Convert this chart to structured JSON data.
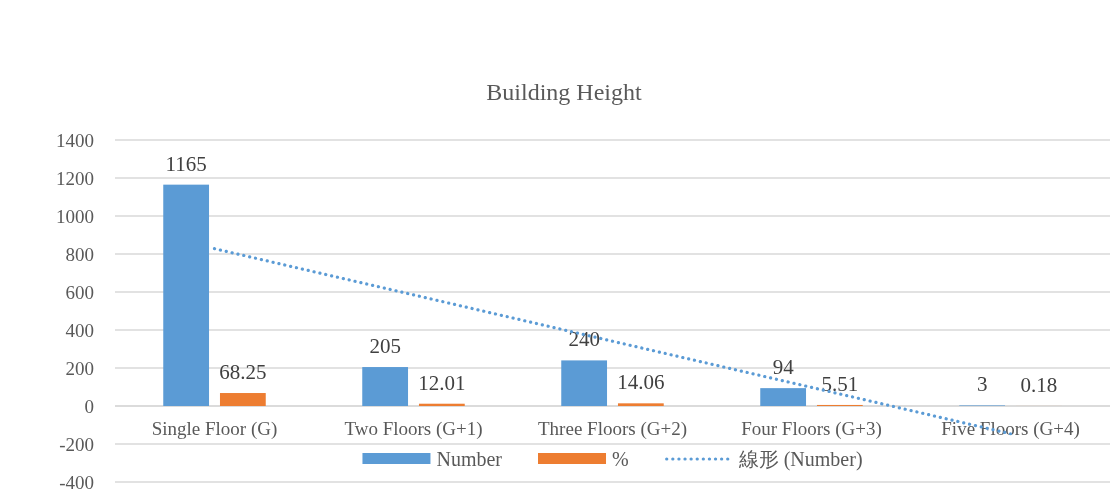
{
  "chart_data": {
    "type": "bar",
    "title": "Building Height",
    "categories": [
      "Single Floor (G)",
      "Two Floors (G+1)",
      "Three Floors (G+2)",
      "Four Floors (G+3)",
      "Five Floors (G+4)"
    ],
    "series": [
      {
        "name": "Number",
        "color": "#5b9bd5",
        "values": [
          1165,
          205,
          240,
          94,
          3
        ],
        "value_labels": [
          "1165",
          "205",
          "240",
          "94",
          "3"
        ]
      },
      {
        "name": "%",
        "color": "#ed7d31",
        "values": [
          68.25,
          12.01,
          14.06,
          5.51,
          0.18
        ],
        "value_labels": [
          "68.25",
          "12.01",
          "14.06",
          "5.51",
          "0.18"
        ]
      },
      {
        "name": "線形 (Number)",
        "type": "line",
        "color": "#5b9bd5",
        "line_style": "dotted",
        "values": [
          828,
          585,
          341,
          98,
          -146
        ]
      }
    ],
    "ylim": [
      -400,
      1400
    ],
    "yticks": [
      -400,
      -200,
      0,
      200,
      400,
      600,
      800,
      1000,
      1200,
      1400
    ],
    "grid": "y",
    "legend": "bottom"
  }
}
